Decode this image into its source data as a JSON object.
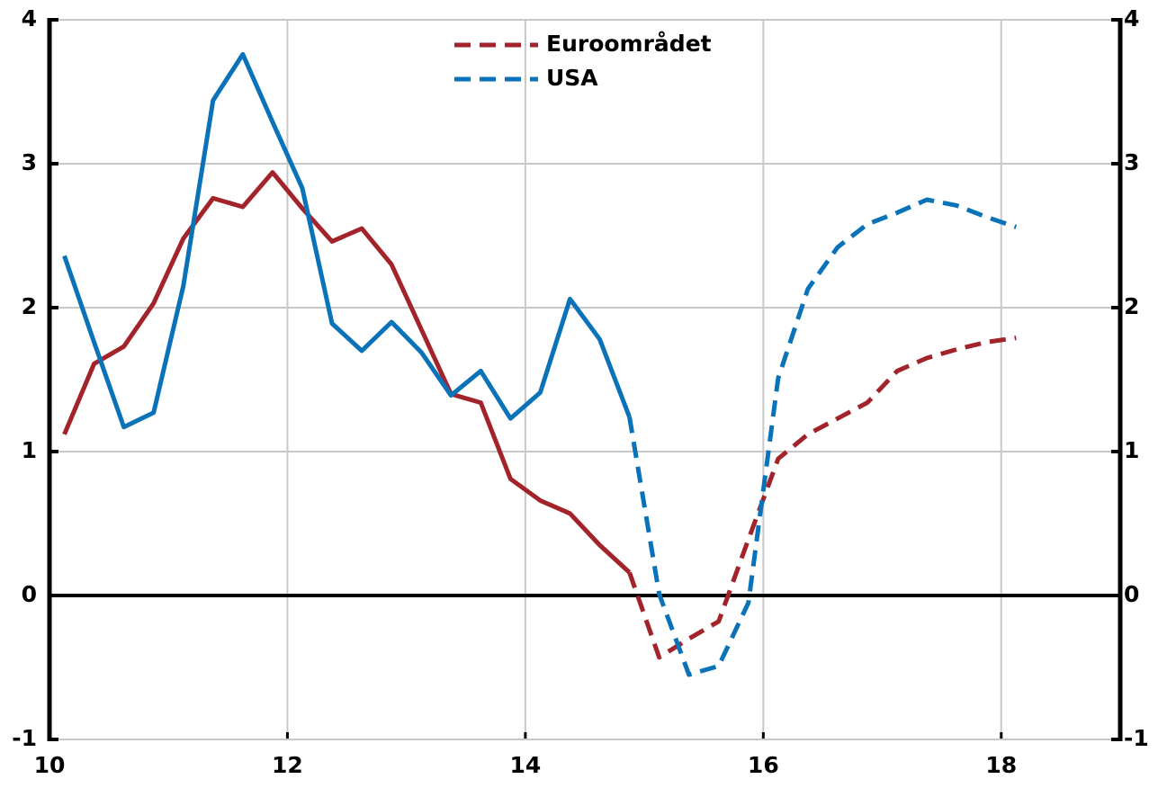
{
  "chart_data": {
    "type": "line",
    "x": [
      10.125,
      10.375,
      10.625,
      10.875,
      11.125,
      11.375,
      11.625,
      11.875,
      12.125,
      12.375,
      12.625,
      12.875,
      13.125,
      13.375,
      13.625,
      13.875,
      14.125,
      14.375,
      14.625,
      14.875,
      15.125,
      15.375,
      15.625,
      15.875,
      16.125,
      16.375,
      16.625,
      16.875,
      17.125,
      17.375,
      17.625,
      17.875,
      18.125
    ],
    "series": [
      {
        "name": "Euroområdet",
        "color": "#a3232a",
        "dash_from": 14.875,
        "values": [
          1.12,
          1.61,
          1.73,
          2.03,
          2.48,
          2.76,
          2.7,
          2.94,
          2.69,
          2.46,
          2.55,
          2.3,
          1.85,
          1.4,
          1.34,
          0.81,
          0.66,
          0.57,
          0.35,
          0.16,
          -0.43,
          -0.3,
          -0.18,
          0.39,
          0.95,
          1.12,
          1.23,
          1.34,
          1.56,
          1.65,
          1.71,
          1.76,
          1.79
        ]
      },
      {
        "name": "USA",
        "color": "#0a72b8",
        "dash_from": 14.875,
        "values": [
          2.36,
          1.76,
          1.17,
          1.27,
          2.15,
          3.44,
          3.76,
          3.29,
          2.83,
          1.89,
          1.7,
          1.9,
          1.69,
          1.39,
          1.56,
          1.23,
          1.41,
          2.06,
          1.78,
          1.24,
          0.01,
          -0.55,
          -0.49,
          -0.05,
          1.51,
          2.13,
          2.42,
          2.58,
          2.66,
          2.75,
          2.71,
          2.63,
          2.56
        ]
      }
    ],
    "xlim": [
      10,
      19
    ],
    "xticks": [
      10,
      12,
      14,
      16,
      18
    ],
    "ylim": [
      -1,
      4
    ],
    "yticks": [
      -1,
      0,
      1,
      2,
      3,
      4
    ],
    "y2lim": [
      -1,
      4
    ],
    "y2ticks": [
      -1,
      0,
      1,
      2,
      3,
      4
    ],
    "grid": true,
    "legend": "top"
  }
}
